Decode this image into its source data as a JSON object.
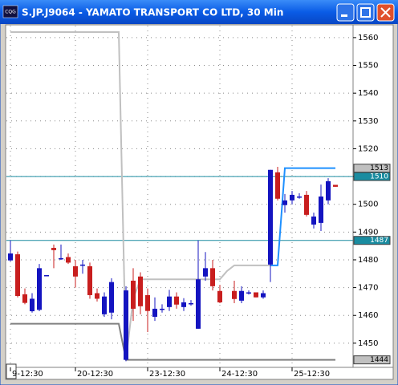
{
  "window_title": "S.JP.J9064 - YAMATO TRANSPORT CO LTD, 30 Min",
  "app_icon": "CQG",
  "chart_data": {
    "type": "candlestick",
    "categories": [
      null,
      "9-12:30",
      null,
      null,
      null,
      null,
      null,
      null,
      null,
      null,
      "20-12:30",
      null,
      null,
      null,
      null,
      null,
      null,
      null,
      null,
      null,
      "23-12:30",
      null,
      null,
      null,
      null,
      null,
      null,
      null,
      null,
      null,
      "24-12:30",
      null,
      null,
      null,
      null,
      null,
      null,
      null,
      null,
      null,
      "25-12:30",
      null,
      null,
      null,
      null,
      null
    ],
    "open": [
      1479.8,
      1482,
      1467.6,
      1461.5,
      1462,
      1474.5,
      1484.3,
      1480.6,
      1481,
      1477.7,
      1478.3,
      1477.7,
      1468,
      1460.4,
      1461,
      null,
      1444,
      1472.5,
      1474,
      1467.3,
      1459.5,
      1462.4,
      1463,
      1466.8,
      1463,
      1464.4,
      1455.2,
      1474,
      1477,
      1468.8,
      null,
      1468.8,
      1465.3,
      1468.3,
      1468.3,
      1466.5,
      1478.3,
      1511.5,
      1499.7,
      1501.4,
      1502.8,
      1503.4,
      1492.7,
      1493.3,
      1501.4,
      1507
    ],
    "high": [
      1487,
      1483,
      1469.7,
      1468,
      1478.5,
      1474.5,
      1485.5,
      1485.5,
      1482.3,
      1480,
      1480,
      1479,
      1469.7,
      1468.3,
      1473.4,
      null,
      1470.5,
      1477,
      1475.5,
      1469.7,
      1466.5,
      1464,
      1469.2,
      1468.3,
      1466.2,
      1465.5,
      1487,
      1482.8,
      1480,
      1471,
      null,
      1472.5,
      1470.5,
      1469,
      1468.3,
      1469,
      1512.4,
      1513.5,
      1503.7,
      1504.8,
      1504,
      1504.8,
      1497,
      1507.1,
      1509.4,
      1507
    ],
    "low": [
      1479.5,
      1466.5,
      1464,
      1461,
      1461.5,
      1474.5,
      1477,
      1480,
      1478.5,
      1470,
      1475,
      1466,
      1465,
      1459.5,
      1458.6,
      null,
      1443.5,
      1458,
      1460.4,
      1454,
      1458,
      1461,
      1461.6,
      1462.4,
      1461.6,
      1463.5,
      1455.2,
      1472.5,
      1469,
      1464.4,
      null,
      1464.4,
      1464.4,
      1467.5,
      1466.5,
      1466,
      1472,
      1501.4,
      1497,
      1500,
      1502,
      1495.6,
      1491.3,
      1490.4,
      1500,
      1506.3
    ],
    "close": [
      1482.3,
      1467,
      1464.5,
      1466,
      1477,
      1474.5,
      1483.5,
      1480.6,
      1479,
      1474,
      1478.3,
      1467.3,
      1466,
      1466.8,
      1472,
      null,
      1469,
      1462.4,
      1463.3,
      1461.6,
      1462.4,
      1462.4,
      1466.8,
      1463.9,
      1464.7,
      1464.4,
      1473,
      1477,
      1470.5,
      1464.7,
      null,
      1465.9,
      1468.8,
      1468.3,
      1466.5,
      1468,
      1512.4,
      1502,
      1501.4,
      1503.4,
      1502.8,
      1496.2,
      1495.6,
      1502.8,
      1508.3,
      1506.3
    ],
    "up_color": "#1414c0",
    "down_color": "#c81e1e",
    "series": [
      {
        "color": "#c0c0c0",
        "values": [
          1562,
          1562,
          1562,
          1562,
          1562,
          1562,
          1562,
          1562,
          1562,
          1562,
          1562,
          1562,
          1562,
          1562,
          1562,
          1562,
          1444,
          1466,
          1473,
          1473,
          1473,
          1473,
          1473,
          1473,
          1473,
          1473,
          1473,
          1473,
          1473,
          1473,
          1476,
          1478,
          1478,
          1478,
          1478,
          1478,
          1478,
          null,
          null,
          null,
          null,
          null,
          null,
          null,
          null,
          null
        ]
      },
      {
        "color": "#808080",
        "values": [
          1457,
          1457,
          1457,
          1457,
          1457,
          1457,
          1457,
          1457,
          1457,
          1457,
          1457,
          1457,
          1457,
          1457,
          1457,
          1457,
          1444,
          1444,
          1444,
          1444,
          1444,
          1444,
          1444,
          1444,
          1444,
          1444,
          1444,
          1444,
          1444,
          1444,
          1444,
          1444,
          1444,
          1444,
          1444,
          1444,
          1444,
          1444,
          1444,
          1444,
          1444,
          1444,
          1444,
          1444,
          1444,
          1444
        ]
      },
      {
        "color": "#1e90ff",
        "values": [
          null,
          null,
          null,
          null,
          null,
          null,
          null,
          null,
          null,
          null,
          null,
          null,
          null,
          null,
          null,
          null,
          null,
          null,
          null,
          null,
          null,
          null,
          null,
          null,
          null,
          null,
          null,
          null,
          null,
          null,
          null,
          null,
          null,
          null,
          null,
          null,
          1478,
          1478,
          1513,
          1513,
          1513,
          1513,
          1513,
          1513,
          1513,
          1513
        ]
      }
    ],
    "hlines": [
      1510,
      1487
    ],
    "hline_color": "#1a8ca0",
    "ylim": [
      1441.3,
      1564.3
    ],
    "yticks": [
      1450,
      1460,
      1470,
      1480,
      1490,
      1500,
      1510,
      1520,
      1530,
      1540,
      1550,
      1560
    ],
    "grid": true
  }
}
